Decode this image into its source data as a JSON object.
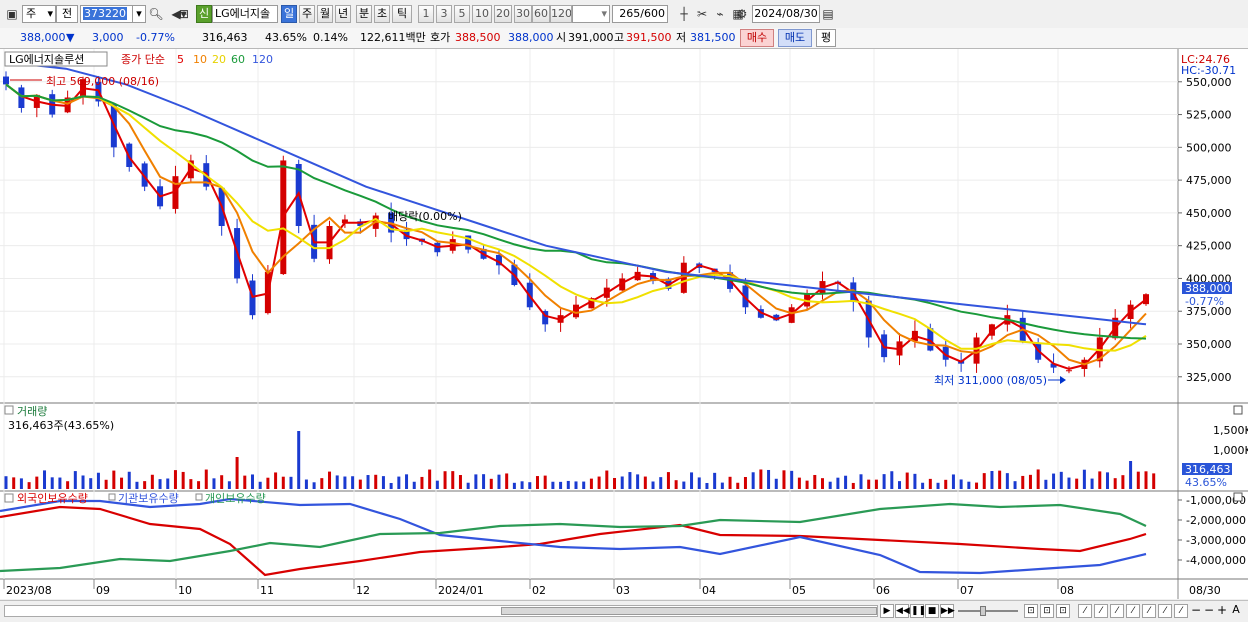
{
  "toolbar": {
    "type": "주",
    "side": "전",
    "code": "373220",
    "name_badge": "신",
    "name": "LG에너지솔",
    "periods": [
      "일",
      "주",
      "월",
      "년",
      "분",
      "초",
      "틱"
    ],
    "period_selected": "일",
    "intervals": [
      "1",
      "3",
      "5",
      "10",
      "20",
      "30",
      "60",
      "120"
    ],
    "count": "265",
    "count_total": "/600",
    "date": "2024/08/30"
  },
  "quote": {
    "price": "388,000",
    "arrow": "▼",
    "change": "3,000",
    "change_pct": "-0.77%",
    "volume": "316,463",
    "vol_ratio": "43.65%",
    "turnover": "0.14%",
    "amount": "122,611백만",
    "bid_label": "호가",
    "bid": "388,500",
    "ask": "388,000",
    "open_label": "시",
    "open": "391,000",
    "high_label": "고",
    "high": "391,500",
    "low_label": "저",
    "low": "381,500",
    "buy_btn": "매수",
    "sell_btn": "매도",
    "eval_btn": "평"
  },
  "price_panel": {
    "title": "LG에너지솔루션",
    "legend_prefix": "종가 단순",
    "ma_periods": [
      "5",
      "10",
      "20",
      "60",
      "120"
    ],
    "ma_colors": [
      "#e00000",
      "#f08000",
      "#f0e000",
      "#1a9a3a",
      "#3355dd"
    ],
    "lc": "LC:24.76",
    "hc": "HC:-30.71",
    "max_label": "최고 569,000 (08/16)",
    "min_label": "최저 311,000 (08/05)",
    "div_label": "배당락(0.00%)",
    "cur_price": "388,000",
    "cur_pct": "-0.77%",
    "y_ticks": [
      "550,000",
      "525,000",
      "500,000",
      "475,000",
      "450,000",
      "425,000",
      "400,000",
      "375,000",
      "350,000",
      "325,000"
    ]
  },
  "volume_panel": {
    "title": "거래량",
    "value": "316,463주(43.65%)",
    "y_ticks": [
      "1,500K",
      "1,000K"
    ],
    "cur": "316,463",
    "cur_pct": "43.65%"
  },
  "holding_panel": {
    "labels": [
      "외국인보유수량",
      "기관보유수량",
      "개인보유수량"
    ],
    "colors": [
      "#d80000",
      "#3355dd",
      "#2a9a55"
    ],
    "y_ticks": [
      "-1,000,000",
      "-2,000,000",
      "-3,000,000",
      "-4,000,000"
    ]
  },
  "x_axis": [
    "2023/08",
    "09",
    "10",
    "11",
    "12",
    "2024/01",
    "02",
    "03",
    "04",
    "05",
    "06",
    "07",
    "08",
    "08/30"
  ],
  "chart_data": {
    "type": "candlestick",
    "title": "LG에너지솔루션",
    "ylim": [
      305000,
      575000
    ],
    "close_approx": [
      548000,
      530000,
      540000,
      525000,
      538000,
      552000,
      535000,
      500000,
      485000,
      470000,
      455000,
      478000,
      490000,
      470000,
      440000,
      400000,
      372000,
      405000,
      490000,
      440000,
      415000,
      440000,
      445000,
      440000,
      448000,
      435000,
      430000,
      428000,
      420000,
      430000,
      422000,
      415000,
      410000,
      395000,
      378000,
      365000,
      372000,
      380000,
      385000,
      393000,
      400000,
      405000,
      398000,
      392000,
      412000,
      408000,
      405000,
      392000,
      378000,
      370000,
      368000,
      378000,
      388000,
      398000,
      396000,
      382000,
      355000,
      340000,
      352000,
      360000,
      345000,
      338000,
      335000,
      355000,
      365000,
      372000,
      352000,
      338000,
      332000,
      330000,
      338000,
      355000,
      370000,
      380000,
      388000
    ],
    "ma120_approx": [
      565000,
      560000,
      548000,
      530000,
      510000,
      490000,
      470000,
      455000,
      440000,
      425000,
      415000,
      405000,
      400000,
      395000,
      390000,
      385000,
      380000,
      375000,
      370000,
      365000
    ]
  }
}
